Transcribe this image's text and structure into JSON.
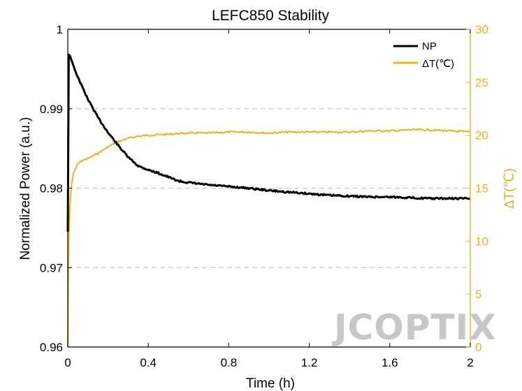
{
  "chart_data": {
    "type": "line",
    "title": "LEFC850 Stability",
    "xlabel": "Time (h)",
    "ylabel": "Normalized Power (a.u.)",
    "y2label": "ΔT(℃)",
    "xlim": [
      0,
      2
    ],
    "ylim": [
      0.96,
      1.0
    ],
    "y2lim": [
      0,
      30
    ],
    "xticks": [
      "0",
      "0.4",
      "0.8",
      "1.2",
      "1.6",
      "2"
    ],
    "xtick_values": [
      0,
      0.4,
      0.8,
      1.2,
      1.6,
      2.0
    ],
    "yticks": [
      "0.96",
      "0.97",
      "0.98",
      "0.99",
      "1"
    ],
    "ytick_values": [
      0.96,
      0.97,
      0.98,
      0.99,
      1.0
    ],
    "y2ticks": [
      "0",
      "5",
      "10",
      "15",
      "20",
      "25",
      "30"
    ],
    "y2tick_values": [
      0,
      5,
      10,
      15,
      20,
      25,
      30
    ],
    "grid": "horizontal dashed at 0.97, 0.98, 0.99",
    "legend_position": "top-right",
    "watermark": "JCOPTIX",
    "colors": {
      "np": "#000000",
      "dt": "#EDB120",
      "grid": "#c8c8c8",
      "watermark": "#b4b4b4",
      "watermark_accent": "#f0a070"
    },
    "series": [
      {
        "name": "NP",
        "axis": "left",
        "x": [
          0,
          0.005,
          0.01,
          0.02,
          0.04,
          0.06,
          0.08,
          0.1,
          0.15,
          0.2,
          0.25,
          0.3,
          0.35,
          0.4,
          0.45,
          0.5,
          0.55,
          0.6,
          0.7,
          0.8,
          0.9,
          1.0,
          1.1,
          1.2,
          1.3,
          1.4,
          1.5,
          1.6,
          1.7,
          1.8,
          1.9,
          2.0
        ],
        "values": [
          0.9745,
          0.9968,
          0.9967,
          0.996,
          0.9946,
          0.9934,
          0.9923,
          0.9912,
          0.9889,
          0.987,
          0.9854,
          0.9839,
          0.9828,
          0.9823,
          0.9819,
          0.9814,
          0.9809,
          0.9807,
          0.9804,
          0.9802,
          0.98,
          0.9797,
          0.9795,
          0.9793,
          0.9791,
          0.979,
          0.9789,
          0.9789,
          0.9788,
          0.9787,
          0.9787,
          0.9787
        ]
      },
      {
        "name": "ΔT(℃)",
        "axis": "right",
        "x": [
          0,
          0.005,
          0.01,
          0.015,
          0.02,
          0.03,
          0.05,
          0.07,
          0.1,
          0.15,
          0.2,
          0.25,
          0.3,
          0.35,
          0.4,
          0.5,
          0.6,
          0.7,
          0.8,
          0.9,
          1.0,
          1.1,
          1.2,
          1.3,
          1.4,
          1.5,
          1.6,
          1.7,
          1.8,
          1.9,
          2.0
        ],
        "values": [
          0,
          10,
          13,
          14.5,
          15.5,
          16.5,
          17.3,
          17.6,
          17.8,
          18.3,
          18.9,
          19.4,
          19.7,
          19.9,
          20.0,
          20.1,
          20.2,
          20.2,
          20.3,
          20.3,
          20.2,
          20.3,
          20.3,
          20.3,
          20.3,
          20.4,
          20.4,
          20.5,
          20.5,
          20.4,
          20.3
        ]
      }
    ]
  }
}
